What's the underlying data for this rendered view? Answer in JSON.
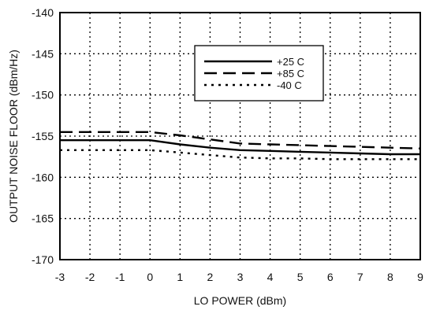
{
  "chart_data": {
    "type": "line",
    "title": "",
    "xlabel": "LO POWER (dBm)",
    "ylabel": "OUTPUT NOISE FLOOR (dBm/Hz)",
    "xlim": [
      -3,
      9
    ],
    "ylim": [
      -170,
      -140
    ],
    "xticks": [
      -3,
      -2,
      -1,
      0,
      1,
      2,
      3,
      4,
      5,
      6,
      7,
      8,
      9
    ],
    "yticks": [
      -170,
      -165,
      -160,
      -155,
      -150,
      -145,
      -140
    ],
    "grid": true,
    "legend_position": "top-right",
    "series": [
      {
        "name": "+25 C",
        "style": "solid",
        "x": [
          -3,
          -2,
          -1,
          0,
          1,
          2,
          3,
          4,
          5,
          6,
          7,
          8,
          9
        ],
        "y": [
          -155.5,
          -155.5,
          -155.5,
          -155.5,
          -156.0,
          -156.4,
          -156.7,
          -156.8,
          -156.9,
          -157.0,
          -157.1,
          -157.2,
          -157.2
        ]
      },
      {
        "name": "+85 C",
        "style": "dashed",
        "x": [
          -3,
          -2,
          -1,
          0,
          1,
          2,
          3,
          4,
          5,
          6,
          7,
          8,
          9
        ],
        "y": [
          -154.5,
          -154.5,
          -154.5,
          -154.5,
          -154.9,
          -155.4,
          -155.9,
          -156.0,
          -156.1,
          -156.2,
          -156.3,
          -156.4,
          -156.5
        ]
      },
      {
        "name": "-40 C",
        "style": "dotted",
        "x": [
          -3,
          -2,
          -1,
          0,
          1,
          2,
          3,
          4,
          5,
          6,
          7,
          8,
          9
        ],
        "y": [
          -156.7,
          -156.7,
          -156.7,
          -156.7,
          -157.0,
          -157.3,
          -157.6,
          -157.7,
          -157.7,
          -157.8,
          -157.8,
          -157.8,
          -157.8
        ]
      }
    ]
  }
}
